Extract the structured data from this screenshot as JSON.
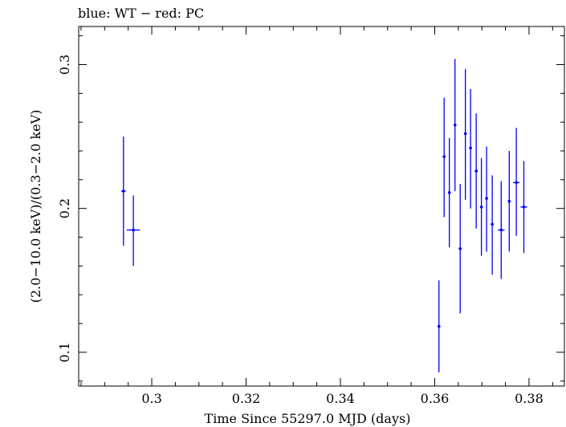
{
  "chart_data": {
    "type": "scatter",
    "title": "blue: WT − red: PC",
    "xlabel": "Time Since 55297.0 MJD (days)",
    "ylabel": "(2.0−10.0 keV)/(0.3−2.0 keV)",
    "xlim": [
      0.2845,
      0.3875
    ],
    "ylim": [
      0.0765,
      0.3265
    ],
    "x_ticks": [
      {
        "value": 0.3,
        "label": "0.3"
      },
      {
        "value": 0.32,
        "label": "0.32"
      },
      {
        "value": 0.34,
        "label": "0.34"
      },
      {
        "value": 0.36,
        "label": "0.36"
      },
      {
        "value": 0.38,
        "label": "0.38"
      }
    ],
    "y_ticks": [
      {
        "value": 0.1,
        "label": "0.1"
      },
      {
        "value": 0.2,
        "label": "0.2"
      },
      {
        "value": 0.3,
        "label": "0.3"
      }
    ],
    "x_minor_step": 0.005,
    "y_minor_step": 0.02,
    "series": [
      {
        "name": "WT",
        "color": "#0000ff",
        "points": [
          {
            "x": 0.294,
            "xerr": 0.0005,
            "y": 0.212,
            "ylo": 0.174,
            "yhi": 0.25
          },
          {
            "x": 0.2961,
            "xerr": 0.0014,
            "y": 0.185,
            "ylo": 0.16,
            "yhi": 0.209
          },
          {
            "x": 0.3609,
            "xerr": 0.0003,
            "y": 0.118,
            "ylo": 0.086,
            "yhi": 0.15
          },
          {
            "x": 0.362,
            "xerr": 0.0003,
            "y": 0.236,
            "ylo": 0.194,
            "yhi": 0.277
          },
          {
            "x": 0.3631,
            "xerr": 0.0003,
            "y": 0.211,
            "ylo": 0.173,
            "yhi": 0.249
          },
          {
            "x": 0.3643,
            "xerr": 0.0003,
            "y": 0.258,
            "ylo": 0.212,
            "yhi": 0.304
          },
          {
            "x": 0.3654,
            "xerr": 0.0003,
            "y": 0.172,
            "ylo": 0.127,
            "yhi": 0.217
          },
          {
            "x": 0.3665,
            "xerr": 0.0003,
            "y": 0.252,
            "ylo": 0.206,
            "yhi": 0.297
          },
          {
            "x": 0.3676,
            "xerr": 0.0003,
            "y": 0.242,
            "ylo": 0.2,
            "yhi": 0.283
          },
          {
            "x": 0.3688,
            "xerr": 0.0003,
            "y": 0.226,
            "ylo": 0.186,
            "yhi": 0.266
          },
          {
            "x": 0.3699,
            "xerr": 0.0003,
            "y": 0.201,
            "ylo": 0.167,
            "yhi": 0.235
          },
          {
            "x": 0.371,
            "xerr": 0.0003,
            "y": 0.207,
            "ylo": 0.17,
            "yhi": 0.243
          },
          {
            "x": 0.3722,
            "xerr": 0.0003,
            "y": 0.189,
            "ylo": 0.154,
            "yhi": 0.223
          },
          {
            "x": 0.3741,
            "xerr": 0.0007,
            "y": 0.185,
            "ylo": 0.151,
            "yhi": 0.219
          },
          {
            "x": 0.3758,
            "xerr": 0.0003,
            "y": 0.205,
            "ylo": 0.17,
            "yhi": 0.24
          },
          {
            "x": 0.3773,
            "xerr": 0.0007,
            "y": 0.218,
            "ylo": 0.181,
            "yhi": 0.256
          },
          {
            "x": 0.3789,
            "xerr": 0.0007,
            "y": 0.201,
            "ylo": 0.169,
            "yhi": 0.233
          }
        ]
      }
    ]
  }
}
